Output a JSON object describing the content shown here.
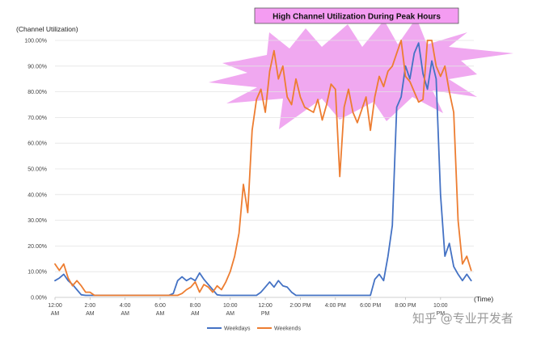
{
  "chart_data": {
    "type": "line",
    "title": "High Channel Utilization During Peak Hours",
    "ylabel": "(Channel Utilization)",
    "xlabel": "(Time)",
    "ylim": [
      0,
      100
    ],
    "xlim": [
      0,
      23.9
    ],
    "grid": "horizontal",
    "legend_position": "bottom-center",
    "yticks": [
      {
        "v": 0,
        "label": "0.00%"
      },
      {
        "v": 10,
        "label": "10.00%"
      },
      {
        "v": 20,
        "label": "20.00%"
      },
      {
        "v": 30,
        "label": "30.00%"
      },
      {
        "v": 40,
        "label": "40.00%"
      },
      {
        "v": 50,
        "label": "50.00%"
      },
      {
        "v": 60,
        "label": "60.00%"
      },
      {
        "v": 70,
        "label": "70.00%"
      },
      {
        "v": 80,
        "label": "80.00%"
      },
      {
        "v": 90,
        "label": "90.00%"
      },
      {
        "v": 100,
        "label": "100.00%"
      }
    ],
    "xticks": [
      {
        "v": 0,
        "l1": "12:00",
        "l2": "AM"
      },
      {
        "v": 2,
        "l1": "2:00",
        "l2": "AM"
      },
      {
        "v": 4,
        "l1": "4:00",
        "l2": "AM"
      },
      {
        "v": 6,
        "l1": "6:00",
        "l2": "AM"
      },
      {
        "v": 8,
        "l1": "8:00",
        "l2": "AM"
      },
      {
        "v": 10,
        "l1": "10:00",
        "l2": "AM"
      },
      {
        "v": 12,
        "l1": "12:00",
        "l2": "PM"
      },
      {
        "v": 14,
        "l1": "2:00 PM",
        "l2": ""
      },
      {
        "v": 16,
        "l1": "4:00 PM",
        "l2": ""
      },
      {
        "v": 18,
        "l1": "6:00 PM",
        "l2": ""
      },
      {
        "v": 20,
        "l1": "8:00 PM",
        "l2": ""
      },
      {
        "v": 22,
        "l1": "10:00",
        "l2": "PM"
      }
    ],
    "series": [
      {
        "name": "Weekdays",
        "color": "#4472c4",
        "points": [
          [
            0,
            6.5
          ],
          [
            0.25,
            7.5
          ],
          [
            0.5,
            9
          ],
          [
            0.75,
            6.5
          ],
          [
            1,
            5
          ],
          [
            1.25,
            3
          ],
          [
            1.5,
            1
          ],
          [
            1.75,
            0.8
          ],
          [
            2,
            0.8
          ],
          [
            3,
            0.8
          ],
          [
            4,
            0.8
          ],
          [
            5,
            0.8
          ],
          [
            6,
            0.8
          ],
          [
            6.5,
            0.8
          ],
          [
            6.75,
            1.5
          ],
          [
            7,
            6.5
          ],
          [
            7.25,
            8
          ],
          [
            7.5,
            6.5
          ],
          [
            7.75,
            7.5
          ],
          [
            8,
            6.5
          ],
          [
            8.25,
            9.5
          ],
          [
            8.5,
            7
          ],
          [
            8.75,
            5
          ],
          [
            9,
            3
          ],
          [
            9.25,
            1
          ],
          [
            9.5,
            0.8
          ],
          [
            10,
            0.8
          ],
          [
            11,
            0.8
          ],
          [
            11.5,
            0.8
          ],
          [
            11.75,
            2
          ],
          [
            12,
            4
          ],
          [
            12.25,
            6
          ],
          [
            12.5,
            4
          ],
          [
            12.75,
            6.5
          ],
          [
            13,
            4.5
          ],
          [
            13.25,
            4
          ],
          [
            13.5,
            2
          ],
          [
            13.75,
            0.8
          ],
          [
            14,
            0.8
          ],
          [
            15,
            0.8
          ],
          [
            16,
            0.8
          ],
          [
            17,
            0.8
          ],
          [
            18,
            0.8
          ],
          [
            18.25,
            7
          ],
          [
            18.5,
            9
          ],
          [
            18.75,
            6.5
          ],
          [
            19,
            16
          ],
          [
            19.25,
            28
          ],
          [
            19.5,
            74
          ],
          [
            19.75,
            78
          ],
          [
            20,
            90
          ],
          [
            20.25,
            85
          ],
          [
            20.5,
            95
          ],
          [
            20.75,
            99
          ],
          [
            21,
            87
          ],
          [
            21.25,
            81
          ],
          [
            21.5,
            92
          ],
          [
            21.75,
            85
          ],
          [
            22,
            40
          ],
          [
            22.25,
            16
          ],
          [
            22.5,
            21
          ],
          [
            22.75,
            12
          ],
          [
            23,
            9
          ],
          [
            23.25,
            6.5
          ],
          [
            23.5,
            9
          ],
          [
            23.75,
            6.5
          ]
        ]
      },
      {
        "name": "Weekends",
        "color": "#ed7d31",
        "points": [
          [
            0,
            13
          ],
          [
            0.25,
            10.5
          ],
          [
            0.5,
            13
          ],
          [
            0.75,
            7.5
          ],
          [
            1,
            4.5
          ],
          [
            1.25,
            6.5
          ],
          [
            1.5,
            4.5
          ],
          [
            1.75,
            2
          ],
          [
            2,
            2
          ],
          [
            2.25,
            0.8
          ],
          [
            3,
            0.8
          ],
          [
            4,
            0.8
          ],
          [
            5,
            0.8
          ],
          [
            6,
            0.8
          ],
          [
            7,
            0.8
          ],
          [
            7.25,
            1.5
          ],
          [
            7.5,
            3
          ],
          [
            7.75,
            4
          ],
          [
            8,
            6
          ],
          [
            8.25,
            2
          ],
          [
            8.5,
            5
          ],
          [
            8.75,
            4
          ],
          [
            9,
            2
          ],
          [
            9.25,
            4.5
          ],
          [
            9.5,
            3
          ],
          [
            9.75,
            6
          ],
          [
            10,
            10
          ],
          [
            10.25,
            16
          ],
          [
            10.5,
            25
          ],
          [
            10.75,
            44
          ],
          [
            11,
            33
          ],
          [
            11.25,
            65
          ],
          [
            11.5,
            77
          ],
          [
            11.75,
            81
          ],
          [
            12,
            72
          ],
          [
            12.25,
            88
          ],
          [
            12.5,
            96
          ],
          [
            12.75,
            85
          ],
          [
            13,
            90
          ],
          [
            13.25,
            78
          ],
          [
            13.5,
            75
          ],
          [
            13.75,
            85
          ],
          [
            14,
            78
          ],
          [
            14.25,
            74
          ],
          [
            14.5,
            73
          ],
          [
            14.75,
            72
          ],
          [
            15,
            77
          ],
          [
            15.25,
            69
          ],
          [
            15.5,
            75
          ],
          [
            15.75,
            83
          ],
          [
            16,
            81
          ],
          [
            16.25,
            47
          ],
          [
            16.5,
            74
          ],
          [
            16.75,
            81
          ],
          [
            17,
            72
          ],
          [
            17.25,
            68
          ],
          [
            17.5,
            73
          ],
          [
            17.75,
            78
          ],
          [
            18,
            65
          ],
          [
            18.25,
            78
          ],
          [
            18.5,
            86
          ],
          [
            18.75,
            82
          ],
          [
            19,
            88
          ],
          [
            19.25,
            90
          ],
          [
            19.5,
            95
          ],
          [
            19.75,
            100
          ],
          [
            20,
            86
          ],
          [
            20.25,
            84
          ],
          [
            20.5,
            80
          ],
          [
            20.75,
            76
          ],
          [
            21,
            77
          ],
          [
            21.25,
            100
          ],
          [
            21.5,
            100
          ],
          [
            21.75,
            90
          ],
          [
            22,
            86
          ],
          [
            22.25,
            90
          ],
          [
            22.5,
            80
          ],
          [
            22.75,
            72
          ],
          [
            23,
            30
          ],
          [
            23.25,
            13
          ],
          [
            23.5,
            16
          ],
          [
            23.75,
            10.5
          ]
        ]
      }
    ]
  },
  "watermark": "知乎 @专业开发者",
  "colors": {
    "title_box_fill": "#f49cf2",
    "starburst_fill": "#f0a8f0",
    "grid": "#e4e4e4",
    "axis": "#bfbfbf"
  }
}
